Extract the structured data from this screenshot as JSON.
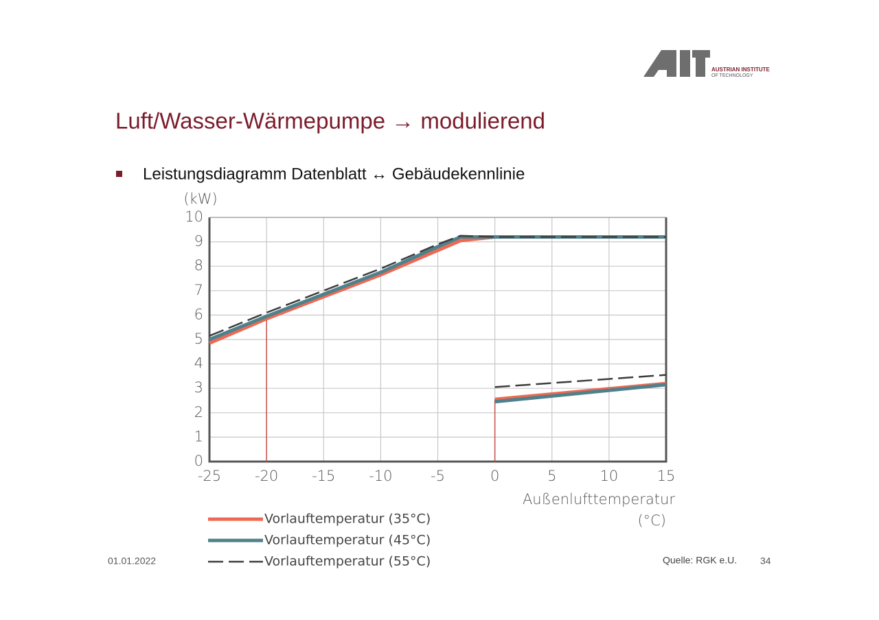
{
  "slide": {
    "logo_line1": "AUSTRIAN INSTITUTE",
    "logo_line2": "OF TECHNOLOGY",
    "title": "Luft/Wasser-Wärmepumpe → modulierend",
    "bullet": "Leistungsdiagramm Datenblatt ↔ Gebäudekennlinie",
    "date": "01.01.2022",
    "source": "Quelle: RGK e.U.",
    "page": "34"
  },
  "chart_data": {
    "type": "line",
    "ylabel": "(kW)",
    "xlabel": [
      "Außenlufttemperatur",
      "(°C)"
    ],
    "xlim": [
      -25,
      15
    ],
    "xticks": [
      -25,
      -20,
      -15,
      -10,
      -5,
      0,
      5,
      10,
      15
    ],
    "ylim": [
      0,
      10
    ],
    "yticks": [
      0,
      1,
      2,
      3,
      4,
      5,
      6,
      7,
      8,
      9,
      10
    ],
    "grid": true,
    "legend": "bottom-left",
    "series": [
      {
        "name": "Vorlauftemperatur (35°C)",
        "color": "#ec6a53",
        "dashed": false,
        "x": [
          -25,
          -20,
          -15,
          -10,
          -5,
          -3,
          0,
          15,
          null,
          0,
          15
        ],
        "values": [
          4.85,
          5.85,
          6.75,
          7.65,
          8.65,
          9.05,
          9.2,
          9.2,
          null,
          2.55,
          3.2
        ]
      },
      {
        "name": "Vorlauftemperatur (45°C)",
        "color": "#4f818c",
        "dashed": false,
        "x": [
          -25,
          -20,
          -15,
          -10,
          -5,
          -3,
          0,
          15,
          null,
          0,
          15
        ],
        "values": [
          5.0,
          5.95,
          6.85,
          7.75,
          8.8,
          9.2,
          9.2,
          9.2,
          null,
          2.45,
          3.15
        ]
      },
      {
        "name": "Vorlauftemperatur (55°C)",
        "color": "#3c3c3c",
        "dashed": true,
        "x": [
          -25,
          -20,
          -15,
          -10,
          -5,
          -3,
          0,
          15,
          null,
          0,
          15
        ],
        "values": [
          5.15,
          6.1,
          7.0,
          7.9,
          8.9,
          9.25,
          9.2,
          9.2,
          null,
          3.05,
          3.55
        ]
      }
    ],
    "droplines": {
      "x": [
        -20,
        0
      ],
      "top": [
        5.85,
        2.55
      ],
      "color": "#c8504a"
    }
  }
}
